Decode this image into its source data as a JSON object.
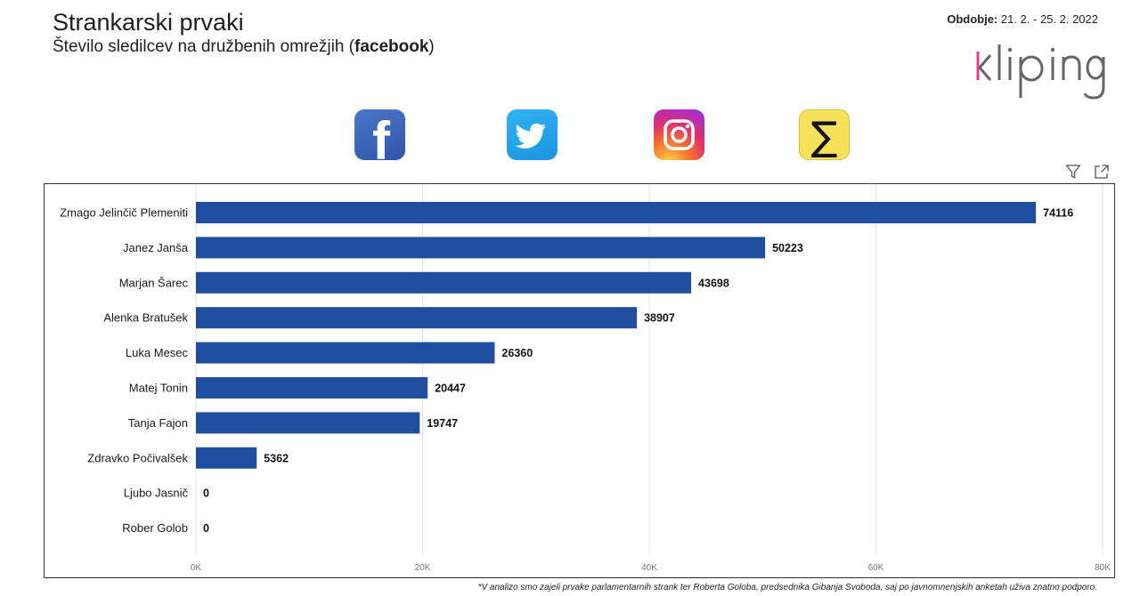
{
  "header": {
    "title": "Strankarski prvaki",
    "subtitle_prefix": "Število sledilcev na družbenih omrežjih (",
    "subtitle_platform": "facebook",
    "subtitle_suffix": ")",
    "period_label": "Obdobje:",
    "period_value": " 21. 2. - 25. 2. 2022",
    "logo_text": "kliping"
  },
  "social_icons": [
    {
      "name": "facebook-icon",
      "glyph": "f"
    },
    {
      "name": "twitter-icon"
    },
    {
      "name": "instagram-icon"
    },
    {
      "name": "sum-icon",
      "glyph": "∑"
    }
  ],
  "toolbar": [
    "filter-icon",
    "expand-icon"
  ],
  "colors": {
    "bar": "#1f4e9e",
    "grid": "#e3e3e3",
    "accent": "#e03d8c"
  },
  "chart_data": {
    "type": "bar",
    "orientation": "horizontal",
    "categories": [
      "Zmago Jelinčič Plemeniti",
      "Janez Janša",
      "Marjan Šarec",
      "Alenka Bratušek",
      "Luka Mesec",
      "Matej Tonin",
      "Tanja Fajon",
      "Zdravko Počivalšek",
      "Ljubo Jasnič",
      "Rober Golob"
    ],
    "values": [
      74116,
      50223,
      43698,
      38907,
      26360,
      20447,
      19747,
      5362,
      0,
      0
    ],
    "xlim": [
      0,
      80000
    ],
    "ticks": [
      0,
      20000,
      40000,
      60000,
      80000
    ],
    "tick_labels": [
      "0K",
      "20K",
      "40K",
      "60K",
      "80K"
    ],
    "grid": true,
    "data_labels": true,
    "legend": "none"
  },
  "footnote": "*V analizo smo zajeli prvake parlamentarnih strank ter Roberta Goloba, predsednika Gibanja Svoboda, saj po javnomnenjskih anketah uživa znatno podporo."
}
